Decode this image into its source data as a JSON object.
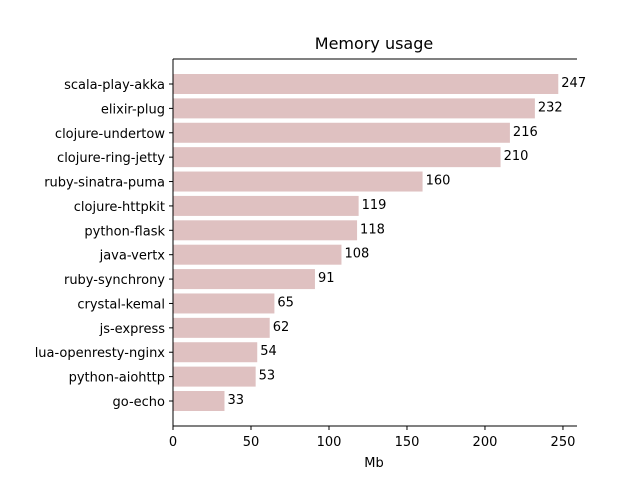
{
  "chart_data": {
    "type": "bar",
    "orientation": "horizontal",
    "title": "Memory usage",
    "xlabel": "Mb",
    "ylabel": "",
    "categories": [
      "scala-play-akka",
      "elixir-plug",
      "clojure-undertow",
      "clojure-ring-jetty",
      "ruby-sinatra-puma",
      "clojure-httpkit",
      "python-flask",
      "java-vertx",
      "ruby-synchrony",
      "crystal-kemal",
      "js-express",
      "lua-openresty-nginx",
      "python-aiohttp",
      "go-echo"
    ],
    "values": [
      247,
      232,
      216,
      210,
      160,
      119,
      118,
      108,
      91,
      65,
      62,
      54,
      53,
      33
    ],
    "xlim": [
      0,
      259
    ],
    "xticks": [
      0,
      50,
      100,
      150,
      200,
      250
    ],
    "bar_color": "#dfc1c1",
    "grid": false
  }
}
